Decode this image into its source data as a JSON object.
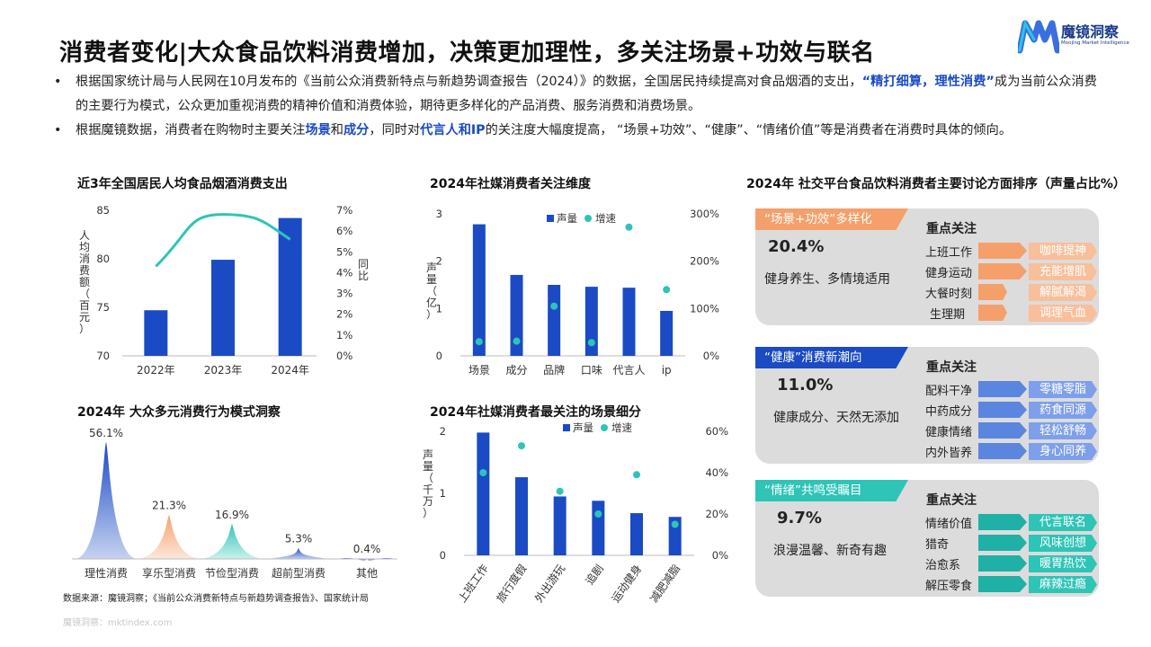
{
  "header": {
    "title": "消费者变化|大众食品饮料消费增加，决策更加理性，多关注场景+功效与联名",
    "logo_text": "魔镜洞察",
    "logo_sub": "Moojing Market Intelligence"
  },
  "bullets": [
    {
      "p1": "根据国家统计局与人民网在10月发布的《当前公众消费新特点与新趋势调查报告（2024）》的数据，全国居民持续提高对食品烟酒的支出，",
      "h1": "“精打细算，理性消费”",
      "p2": "成为当前公众消费的主要行为模式，公众更加重视消费的精神价值和消费体验，期待更多样化的产品消费、服务消费和消费场景。"
    },
    {
      "p1": "根据魔镜数据，消费者在购物时主要关注",
      "h1": "场景",
      "p2": "和",
      "h2": "成分",
      "p3": "，同时对",
      "h3": "代言人和IP",
      "p4": "的关注度大幅度提高，  “场景+功效”、“健康”、“情绪价值”等是消费者在消费时具体的倾向。"
    }
  ],
  "chart_titles": {
    "c1": "近3年全国居民人均食品烟酒消费支出",
    "c2": "2024年社媒消费者关注维度",
    "c3": "2024年 大众多元消费行为模式洞察",
    "c4": "2024年社媒消费者最关注的场景细分",
    "c5": "2024年 社交平台食品饮料消费者主要讨论方面排序（声量占比%）"
  },
  "chart_data": [
    {
      "type": "bar",
      "title": "近3年全国居民人均食品烟酒消费支出",
      "categories": [
        "2022年",
        "2023年",
        "2024年"
      ],
      "series": [
        {
          "values": [
            74.7,
            79.9,
            84.2
          ],
          "color": "#1a4bc4"
        },
        {
          "values": [
            4.3,
            6.8,
            5.6
          ],
          "color": "#2ec4b6",
          "line": true
        }
      ],
      "ylabel": "人均消费额（百元）",
      "ylabel_right": "同比",
      "ylim": [
        70,
        85
      ],
      "yticks": [
        "70",
        "75",
        "80",
        "85"
      ],
      "ylim_right": [
        0,
        7
      ],
      "yticks_right": [
        "0%",
        "1%",
        "2%",
        "3%",
        "4%",
        "5%",
        "6%",
        "7%"
      ]
    },
    {
      "type": "bar",
      "title": "2024年社媒消费者关注维度",
      "categories": [
        "场景",
        "成分",
        "品牌",
        "口味",
        "代言人",
        "ip"
      ],
      "series": [
        {
          "name": "声量",
          "values": [
            2.78,
            1.71,
            1.5,
            1.46,
            1.44,
            0.95
          ],
          "color": "#1a4bc4"
        },
        {
          "name": "增速",
          "values": [
            30,
            31,
            105,
            28,
            272,
            140
          ],
          "color": "#2ec4b6"
        }
      ],
      "ylabel": "声量（亿）",
      "ylim": [
        0,
        3
      ],
      "yticks": [
        "0",
        "1",
        "2",
        "3"
      ],
      "ylim_right": [
        0,
        300
      ],
      "yticks_right": [
        "0%",
        "100%",
        "200%",
        "300%"
      ],
      "legend": "top"
    },
    {
      "type": "area",
      "title": "2024年 大众多元消费行为模式洞察",
      "categories": [
        "理性消费",
        "享乐型消费",
        "节俭型消费",
        "超前型消费",
        "其他"
      ],
      "values": [
        56.1,
        21.3,
        16.9,
        5.3,
        0.4
      ],
      "labels": [
        "56.1%",
        "21.3%",
        "16.9%",
        "5.3%",
        "0.4%"
      ],
      "colors": [
        "#1a4bc4",
        "#f5a06a",
        "#2ec4b6",
        "#1a4bc4",
        "#1a4bc4"
      ]
    },
    {
      "type": "bar",
      "title": "2024年社媒消费者最关注的场景细分",
      "categories": [
        "上班工作",
        "旅行度假",
        "外出游玩",
        "追剧",
        "运动健身",
        "减肥减脂"
      ],
      "series": [
        {
          "name": "声量",
          "values": [
            1.98,
            1.26,
            0.95,
            0.88,
            0.68,
            0.62
          ],
          "color": "#1a4bc4"
        },
        {
          "name": "增速",
          "values": [
            40,
            53,
            31,
            20,
            39,
            15
          ],
          "color": "#2ec4b6"
        }
      ],
      "ylabel": "声量（千万）",
      "ylim": [
        0,
        2
      ],
      "yticks": [
        "0",
        "1",
        "2"
      ],
      "ylim_right": [
        0,
        60
      ],
      "yticks_right": [
        "0%",
        "20%",
        "40%",
        "60%"
      ],
      "legend": "top"
    }
  ],
  "panels": [
    {
      "tag": "“场景+功效”多样化",
      "pct": "20.4%",
      "desc": "健身养生、多情境适用",
      "focus_title": "重点关注",
      "rows": [
        {
          "label": "上班工作",
          "pill": "咖啡提神"
        },
        {
          "label": "健身运动",
          "pill": "充能增肌"
        },
        {
          "label": "大餐时刻",
          "pill": "解腻解渴"
        },
        {
          "label": "生理期",
          "pill": "调理气血"
        }
      ]
    },
    {
      "tag": "“健康”消费新潮向",
      "pct": "11.0%",
      "desc": "健康成分、天然无添加",
      "focus_title": "重点关注",
      "rows": [
        {
          "label": "配料干净",
          "pill": "零糖零脂"
        },
        {
          "label": "中药成分",
          "pill": "药食同源"
        },
        {
          "label": "健康情绪",
          "pill": "轻松舒畅"
        },
        {
          "label": "内外皆养",
          "pill": "身心同养"
        }
      ]
    },
    {
      "tag": "“情绪”共鸣受瞩目",
      "pct": "9.7%",
      "desc": "浪漫温馨、新奇有趣",
      "focus_title": "重点关注",
      "rows": [
        {
          "label": "情绪价值",
          "pill": "代言联名"
        },
        {
          "label": "猎奇",
          "pill": "风味创想"
        },
        {
          "label": "治愈系",
          "pill": "暖胃热饮"
        },
        {
          "label": "解压零食",
          "pill": "麻辣过瘾"
        }
      ]
    }
  ],
  "panel_colors": {
    "p1": {
      "tag": "#f5a06a",
      "arrow": "#f5a06a",
      "pill": "#f8bf9a"
    },
    "p2": {
      "tag": "#1a4bc4",
      "arrow": "#5b86e0",
      "pill": "#7ea0ea"
    },
    "p3": {
      "tag": "#2ec4b6",
      "arrow": "#1fb0a6",
      "pill": "#2ec4b6"
    }
  },
  "footer": {
    "source": "数据来源：魔镜洞察；《当前公众消费新特点与新趋势调查报告》、国家统计局",
    "site": "魔镜洞察：mktindex.com"
  }
}
